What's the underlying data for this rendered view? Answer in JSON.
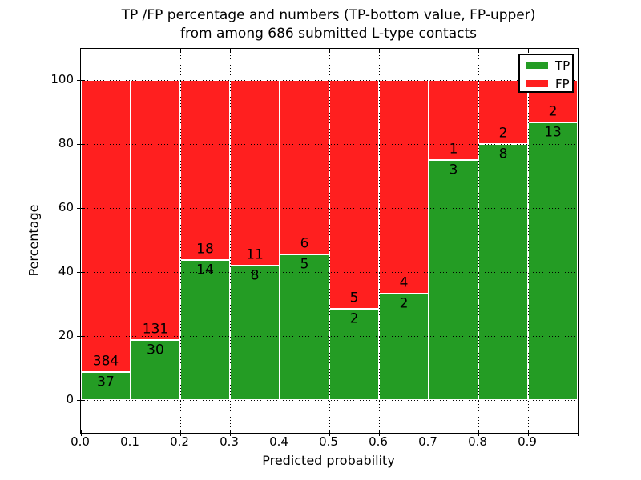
{
  "title_lines": [
    "TP /FP percentage and numbers (TP-bottom value, FP-upper)",
    "from among 686 submitted L-type contacts"
  ],
  "chart_data": {
    "type": "bar",
    "stacked": true,
    "normalized": "each 0.1-wide bin scaled to 100%",
    "title": "TP /FP percentage and numbers (TP-bottom value, FP-upper) from among 686 submitted L-type contacts",
    "xlabel": "Predicted probability",
    "ylabel": "Percentage",
    "total_contacts": 686,
    "bins": [
      "0.0-0.1",
      "0.1-0.2",
      "0.2-0.3",
      "0.3-0.4",
      "0.4-0.5",
      "0.5-0.6",
      "0.6-0.7",
      "0.7-0.8",
      "0.8-0.9",
      "0.9-1.0"
    ],
    "series": [
      {
        "name": "TP",
        "color": "#249c24",
        "counts": [
          37,
          30,
          14,
          8,
          5,
          2,
          2,
          3,
          8,
          13
        ]
      },
      {
        "name": "FP",
        "color": "#ff1f1f",
        "counts": [
          384,
          131,
          18,
          11,
          6,
          5,
          4,
          1,
          2,
          2
        ]
      }
    ],
    "tp_percent": [
      8.79,
      18.63,
      43.75,
      42.11,
      45.45,
      28.57,
      33.33,
      75.0,
      80.0,
      86.67
    ],
    "x_ticks": [
      "0.0",
      "0.1",
      "0.2",
      "0.3",
      "0.4",
      "0.5",
      "0.6",
      "0.7",
      "0.8",
      "0.9"
    ],
    "y_ticks": [
      0,
      20,
      40,
      60,
      80,
      100
    ],
    "xlim": [
      0.0,
      1.0
    ],
    "ylim": [
      -10.3,
      109.7
    ],
    "grid": {
      "style": "dotted",
      "color": "#000000",
      "on_top": true
    },
    "bar_edge_color": "#ffffff",
    "legend": {
      "position": "upper right",
      "entries": [
        {
          "label": "TP",
          "color": "#249c24"
        },
        {
          "label": "FP",
          "color": "#ff1f1f"
        }
      ]
    }
  }
}
